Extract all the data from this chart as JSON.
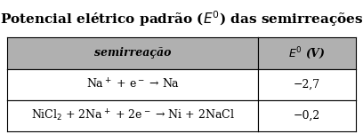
{
  "title": "Potencial elétrico padrão ($\\boldsymbol{E^0}$) das semirreações",
  "header_col1": "semirreação",
  "header_col2": "$\\boldsymbol{E^0}$ (V)",
  "rows": [
    {
      "reaction": "Na$^+$ + e$^-$ → Na",
      "value": "−2,7"
    },
    {
      "reaction": "NiCl$_2$ + 2Na$^+$ + 2e$^-$ → Ni + 2NaCl",
      "value": "−0,2"
    }
  ],
  "header_bg": "#b0b0b0",
  "row_bg": "#ffffff",
  "border_color": "#000000",
  "title_fontsize": 11,
  "header_fontsize": 9,
  "cell_fontsize": 9
}
